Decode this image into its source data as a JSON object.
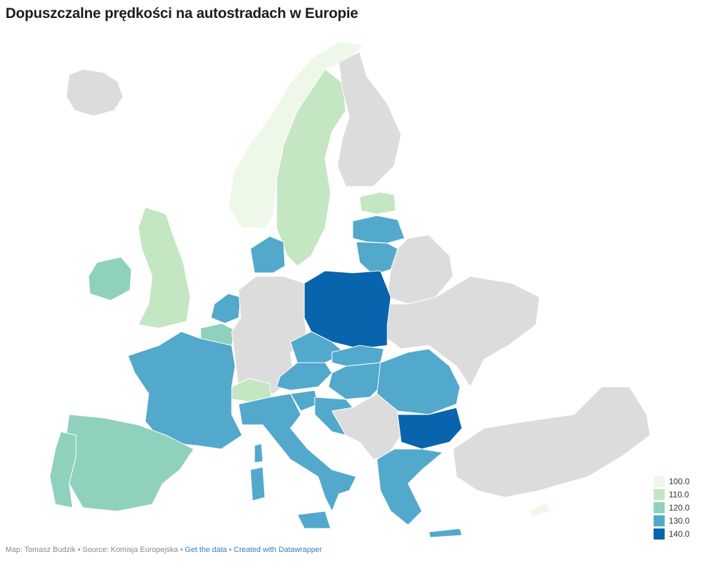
{
  "title": "Dopuszczalne prędkości na autostradach w Europie",
  "colors": {
    "v100": "#eef8e8",
    "v110": "#c4e6c2",
    "v120": "#8fd1bd",
    "v130": "#52a9cc",
    "v140": "#0864ad",
    "nodata": "#dcdcdc"
  },
  "legend": [
    {
      "label": "100.0",
      "color": "#eef8e8"
    },
    {
      "label": "110.0",
      "color": "#c4e6c2"
    },
    {
      "label": "120.0",
      "color": "#8fd1bd"
    },
    {
      "label": "130.0",
      "color": "#52a9cc"
    },
    {
      "label": "140.0",
      "color": "#0864ad"
    }
  ],
  "footer": {
    "credit": "Map: Tomasz Budzik • Source: Komisja Europejska • ",
    "get_data": "Get the data",
    "sep": " • ",
    "created": "Created with Datawrapper"
  }
}
